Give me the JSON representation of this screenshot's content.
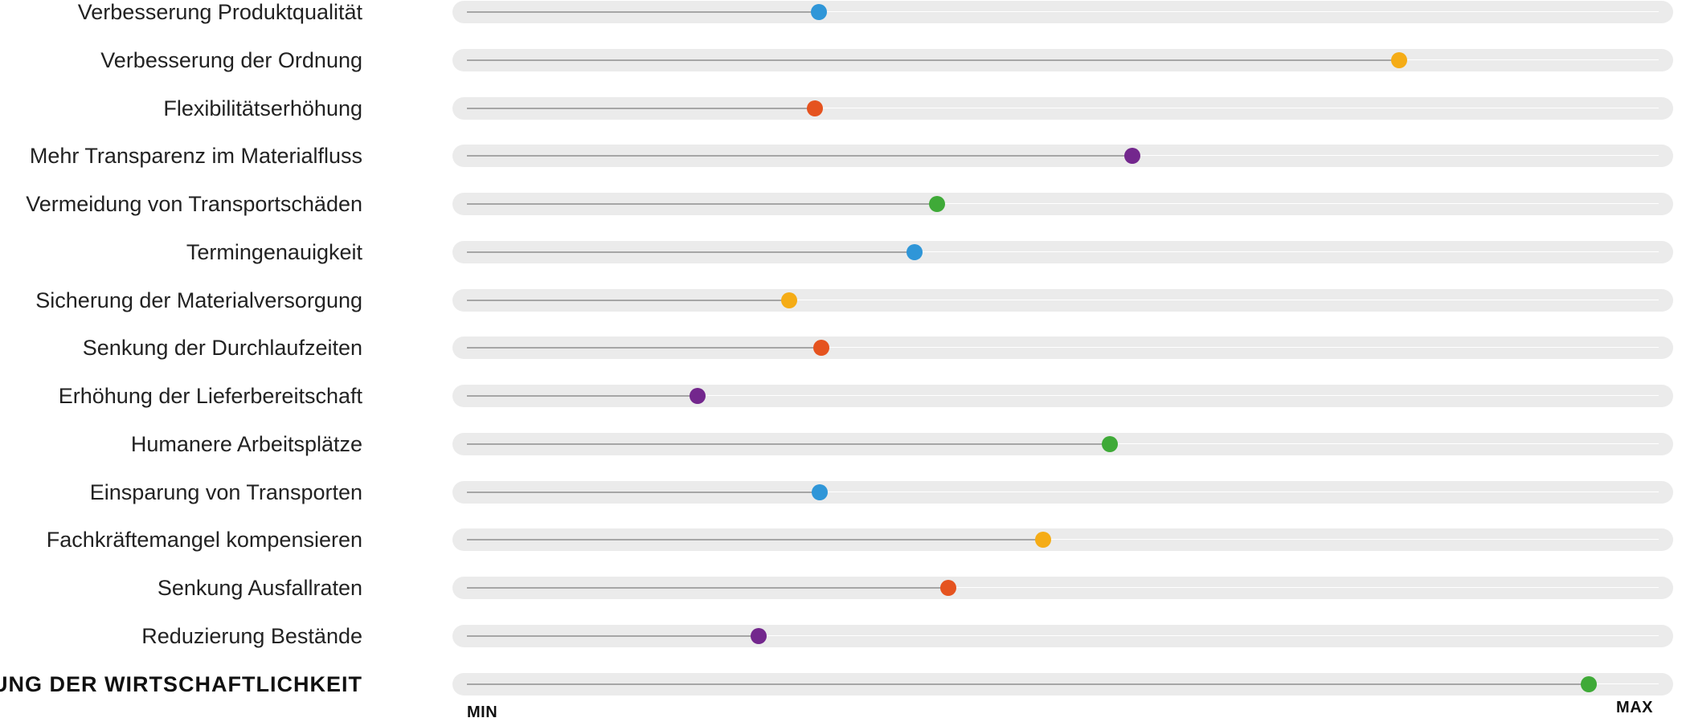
{
  "sliders": [
    {
      "label": "Verbesserung Produktqualität",
      "value": 0.2954,
      "color": "#2f96d8",
      "emphasis": false
    },
    {
      "label": "Verbesserung der Ordnung",
      "value": 0.782,
      "color": "#f5ac16",
      "emphasis": false
    },
    {
      "label": "Flexibilitätserhöhung",
      "value": 0.2918,
      "color": "#e5531f",
      "emphasis": false
    },
    {
      "label": "Mehr Transparenz im Materialfluss",
      "value": 0.5583,
      "color": "#73278d",
      "emphasis": false
    },
    {
      "label": "Vermeidung von Transportschäden",
      "value": 0.3944,
      "color": "#3faa38",
      "emphasis": false
    },
    {
      "label": "Termingenauigkeit",
      "value": 0.3754,
      "color": "#2f96d8",
      "emphasis": false
    },
    {
      "label": "Sicherung der Materialversorgung",
      "value": 0.2701,
      "color": "#f5ac16",
      "emphasis": false
    },
    {
      "label": "Senkung der Durchlaufzeiten",
      "value": 0.2973,
      "color": "#e5531f",
      "emphasis": false
    },
    {
      "label": "Erhöhung der Lieferbereitschaft",
      "value": 0.1937,
      "color": "#73278d",
      "emphasis": false
    },
    {
      "label": "Humanere Arbeitsplätze",
      "value": 0.5394,
      "color": "#3faa38",
      "emphasis": false
    },
    {
      "label": "Einsparung von Transporten",
      "value": 0.2963,
      "color": "#2f96d8",
      "emphasis": false
    },
    {
      "label": "Fachkräftemangel kompensieren",
      "value": 0.4838,
      "color": "#f5ac16",
      "emphasis": false
    },
    {
      "label": "Senkung Ausfallraten",
      "value": 0.4036,
      "color": "#e5531f",
      "emphasis": false
    },
    {
      "label": "Reduzierung Bestände",
      "value": 0.245,
      "color": "#73278d",
      "emphasis": false
    },
    {
      "label": "RUNG DER WIRTSCHAFTLICHKEIT",
      "value": 0.9413,
      "color": "#3faa38",
      "emphasis": true
    }
  ],
  "scale": {
    "min_label": "MIN",
    "max_label": "MAX"
  }
}
